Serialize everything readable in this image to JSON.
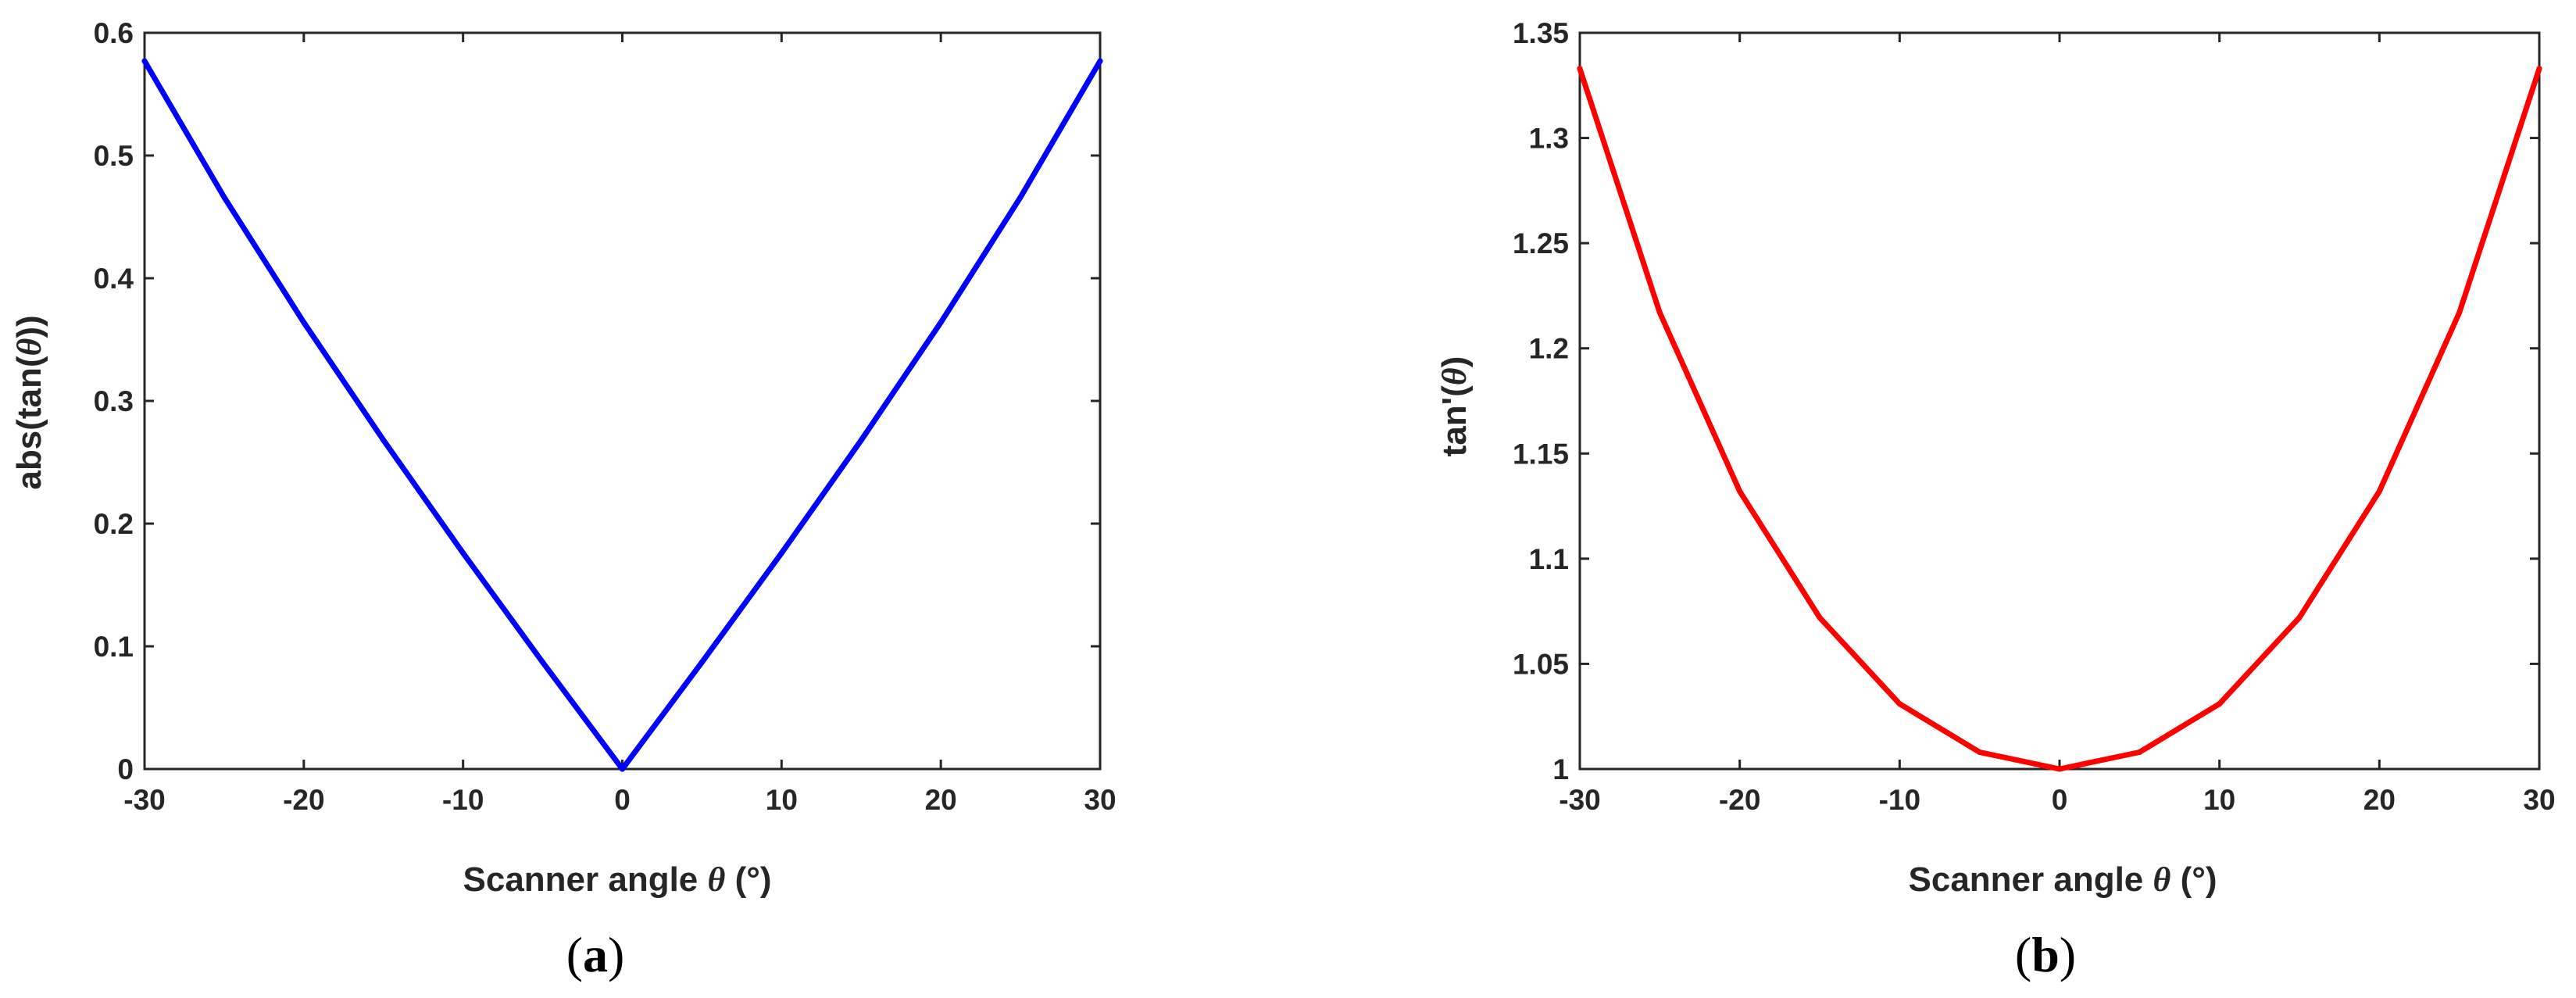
{
  "figure": {
    "panels": [
      {
        "label_open": "(",
        "letter": "a",
        "label_close": ")"
      },
      {
        "label_open": "(",
        "letter": "b",
        "label_close": ")"
      }
    ]
  },
  "chart_data": [
    {
      "type": "line",
      "title": "",
      "xlabel_prefix": "Scanner angle ",
      "xlabel_symbol": "θ",
      "xlabel_suffix": " (°)",
      "ylabel_prefix": "abs(tan(",
      "ylabel_symbol": "θ",
      "ylabel_suffix": "))",
      "xlim": [
        -30,
        30
      ],
      "ylim": [
        0,
        0.6
      ],
      "xticks": [
        -30,
        -20,
        -10,
        0,
        10,
        20,
        30
      ],
      "xtick_labels": [
        "-30",
        "-20",
        "-10",
        "0",
        "10",
        "20",
        "30"
      ],
      "yticks": [
        0,
        0.1,
        0.2,
        0.3,
        0.4,
        0.5,
        0.6
      ],
      "ytick_labels": [
        "0",
        "0.1",
        "0.2",
        "0.3",
        "0.4",
        "0.5",
        "0.6"
      ],
      "grid": false,
      "series": [
        {
          "name": "abs(tan(θ))",
          "color": "#0000ff",
          "x": [
            -30,
            -25,
            -20,
            -15,
            -10,
            -5,
            0,
            5,
            10,
            15,
            20,
            25,
            30
          ],
          "y": [
            0.577,
            0.466,
            0.364,
            0.268,
            0.176,
            0.087,
            0.0,
            0.087,
            0.176,
            0.268,
            0.364,
            0.466,
            0.577
          ]
        }
      ]
    },
    {
      "type": "line",
      "title": "",
      "xlabel_prefix": "Scanner angle ",
      "xlabel_symbol": "θ",
      "xlabel_suffix": " (°)",
      "ylabel_prefix": "tan'(",
      "ylabel_symbol": "θ",
      "ylabel_suffix": ")",
      "xlim": [
        -30,
        30
      ],
      "ylim": [
        1,
        1.35
      ],
      "xticks": [
        -30,
        -20,
        -10,
        0,
        10,
        20,
        30
      ],
      "xtick_labels": [
        "-30",
        "-20",
        "-10",
        "0",
        "10",
        "20",
        "30"
      ],
      "yticks": [
        1,
        1.05,
        1.1,
        1.15,
        1.2,
        1.25,
        1.3,
        1.35
      ],
      "ytick_labels": [
        "1",
        "1.05",
        "1.1",
        "1.15",
        "1.2",
        "1.25",
        "1.3",
        "1.35"
      ],
      "grid": false,
      "series": [
        {
          "name": "tan'(θ)",
          "color": "#ff0000",
          "x": [
            -30,
            -25,
            -20,
            -15,
            -10,
            -5,
            0,
            5,
            10,
            15,
            20,
            25,
            30
          ],
          "y": [
            1.333,
            1.217,
            1.132,
            1.072,
            1.031,
            1.008,
            1.0,
            1.008,
            1.031,
            1.072,
            1.132,
            1.217,
            1.333
          ]
        }
      ]
    }
  ]
}
